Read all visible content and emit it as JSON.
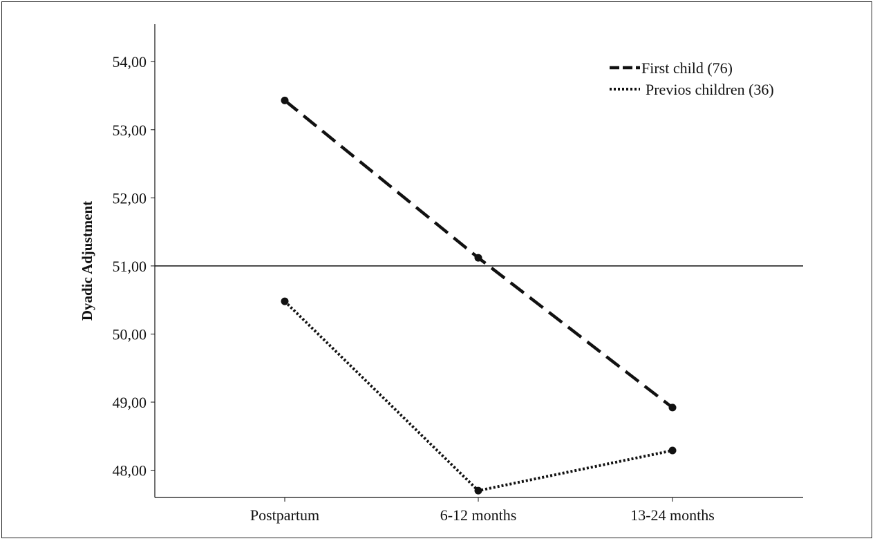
{
  "chart_data": {
    "type": "line",
    "title": "",
    "xlabel": "",
    "ylabel": "Dyadic Adjustment",
    "categories": [
      "Postpartum",
      "6-12 months",
      "13-24 months"
    ],
    "ylim": [
      47.6,
      54.55
    ],
    "yticks": [
      48,
      49,
      50,
      51,
      52,
      53,
      54
    ],
    "ytick_labels": [
      "48,00",
      "49,00",
      "50,00",
      "51,00",
      "52,00",
      "53,00",
      "54,00"
    ],
    "reference_line": 51,
    "grid": false,
    "legend_position": "top-right",
    "series": [
      {
        "name": "First child (76)",
        "style": "dashed",
        "color": "#111111",
        "values": [
          53.43,
          51.12,
          48.92
        ]
      },
      {
        "name": "Previos children (36)",
        "style": "dotted",
        "color": "#111111",
        "values": [
          50.48,
          47.7,
          48.29
        ]
      }
    ]
  }
}
